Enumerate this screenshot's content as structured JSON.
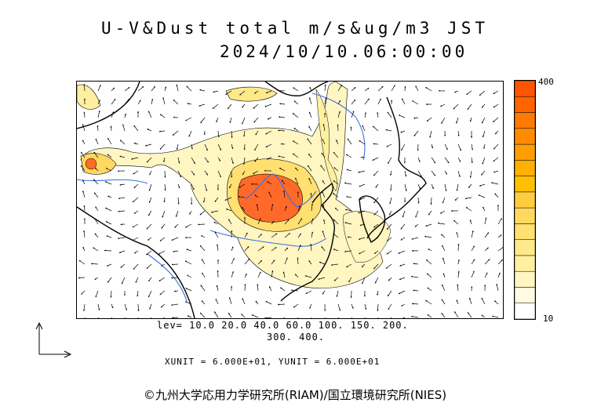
{
  "title": "U-V&Dust total m/s&ug/m3 JST",
  "datetime": "2024/10/10.06:00:00",
  "colorbar": {
    "max_label": "400",
    "min_label": "10",
    "colors": [
      "#ffffff",
      "#fffbe0",
      "#fff6c2",
      "#fff0a0",
      "#ffe98a",
      "#ffe070",
      "#ffd860",
      "#ffcc40",
      "#ffc000",
      "#ffb000",
      "#ff9e00",
      "#ff8c00",
      "#ff7a00",
      "#ff6400",
      "#ff5500"
    ],
    "icon": "color-scale"
  },
  "levels_line1": "lev= 10.0 20.0 40.0 60.0 100. 150. 200.",
  "levels_line2": "300. 400.",
  "unit_line": "XUNIT = 6.000E+01, YUNIT = 6.000E+01",
  "copyright": "©九州大学応用力学研究所(RIAM)/国立環境研究所(NIES)",
  "reference_vector_icon": "vector-axes-icon"
}
